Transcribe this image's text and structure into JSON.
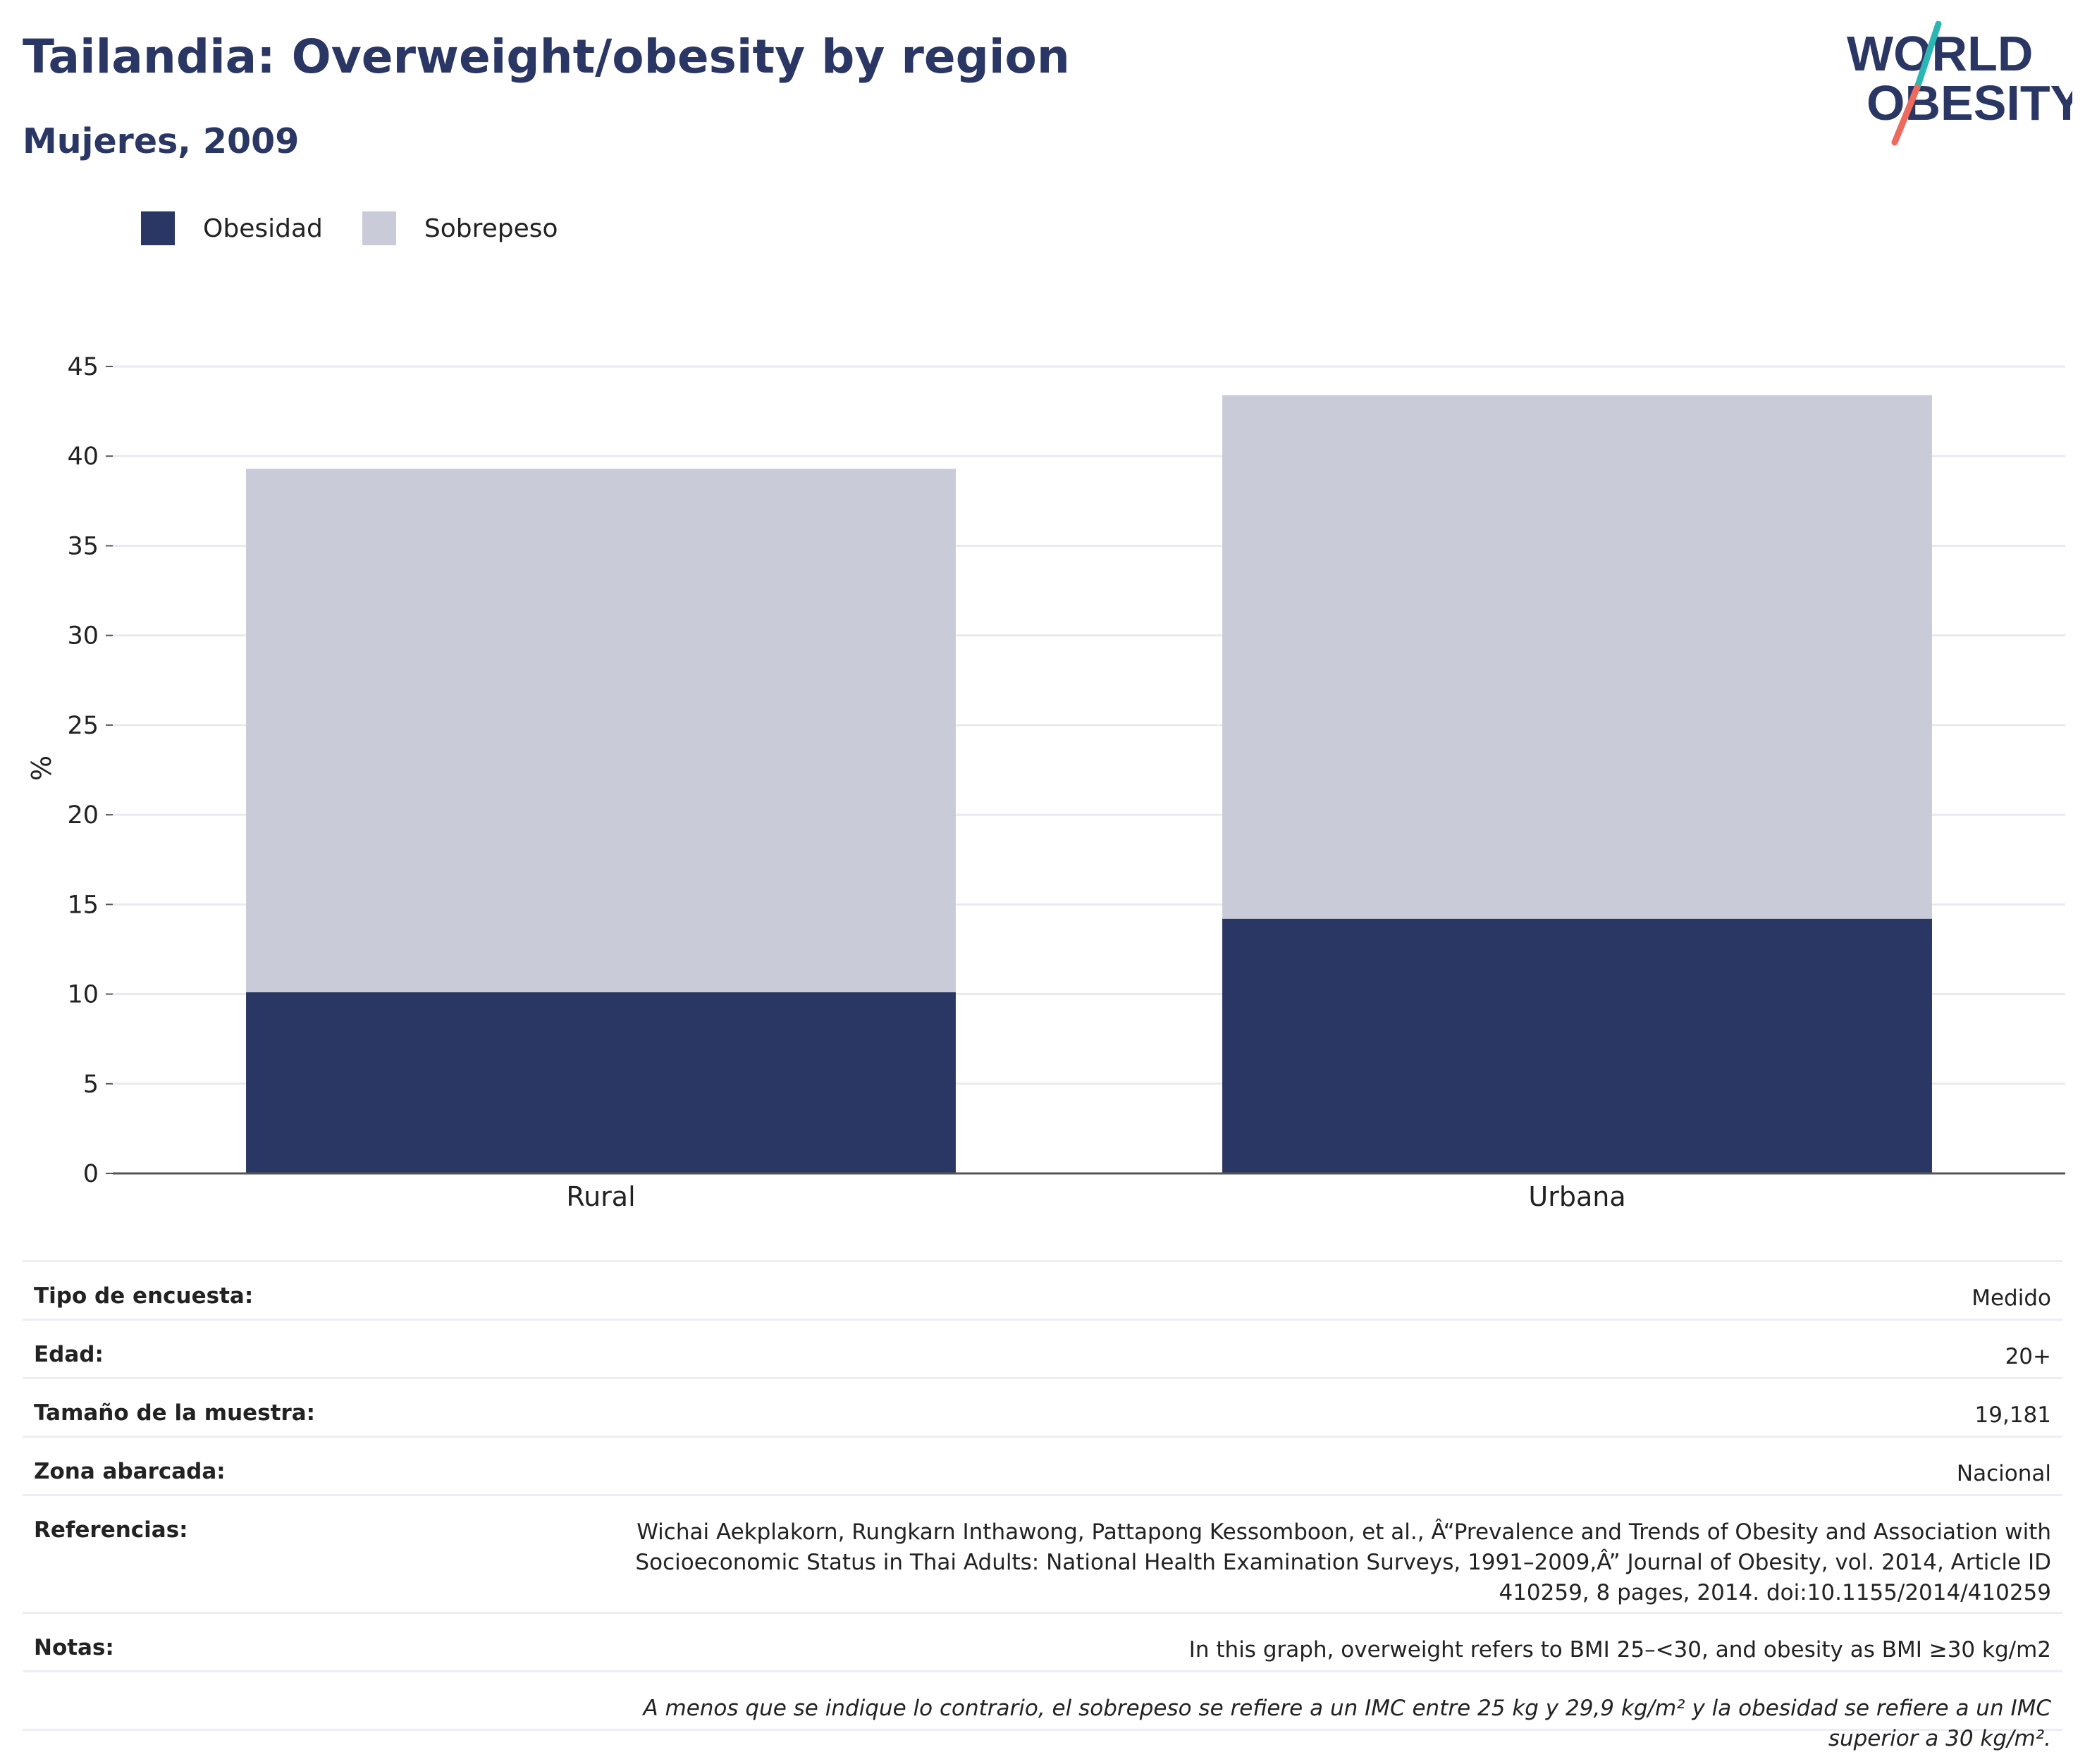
{
  "header": {
    "title": "Tailandia: Overweight/obesity by region",
    "subtitle": "Mujeres, 2009"
  },
  "logo": {
    "line1": "WORLD",
    "line2": "OBESITY"
  },
  "legend": {
    "items": [
      {
        "label": "Obesidad",
        "color": "#2a3663"
      },
      {
        "label": "Sobrepeso",
        "color": "#c9ccd8"
      }
    ]
  },
  "chart_data": {
    "type": "bar",
    "stacked": true,
    "categories": [
      "Rural",
      "Urbana"
    ],
    "series": [
      {
        "name": "Obesidad",
        "values": [
          10.1,
          14.2
        ],
        "color": "#2a3663"
      },
      {
        "name": "Sobrepeso",
        "values": [
          29.2,
          29.2
        ],
        "color": "#c9ccd8"
      }
    ],
    "ylabel": "%",
    "ylim": [
      0,
      45
    ],
    "yticks": [
      0,
      5,
      10,
      15,
      20,
      25,
      30,
      35,
      40,
      45
    ],
    "grid": true,
    "legend_position": "top-left"
  },
  "metadata": {
    "rows": [
      {
        "label": "Tipo de encuesta:",
        "value": "Medido"
      },
      {
        "label": "Edad:",
        "value": "20+"
      },
      {
        "label": "Tamaño de la muestra:",
        "value": "19,181"
      },
      {
        "label": "Zona abarcada:",
        "value": "Nacional"
      },
      {
        "label": "Referencias:",
        "value": "Wichai Aekplakorn, Rungkarn Inthawong, Pattapong Kessomboon, et al., Â“Prevalence and Trends of Obesity and Association with Socioeconomic Status in Thai Adults: National Health Examination Surveys, 1991–2009,Â” Journal of Obesity, vol. 2014, Article ID 410259, 8 pages, 2014. doi:10.1155/2014/410259"
      },
      {
        "label": "Notas:",
        "value": "In this graph, overweight refers to BMI 25–<30, and obesity as BMI ≥30 kg/m2"
      }
    ],
    "footnote": "A menos que se indique lo contrario, el sobrepeso se refiere a un IMC entre 25 kg y 29,9 kg/m² y la obesidad se refiere a un IMC superior a 30 kg/m²."
  }
}
